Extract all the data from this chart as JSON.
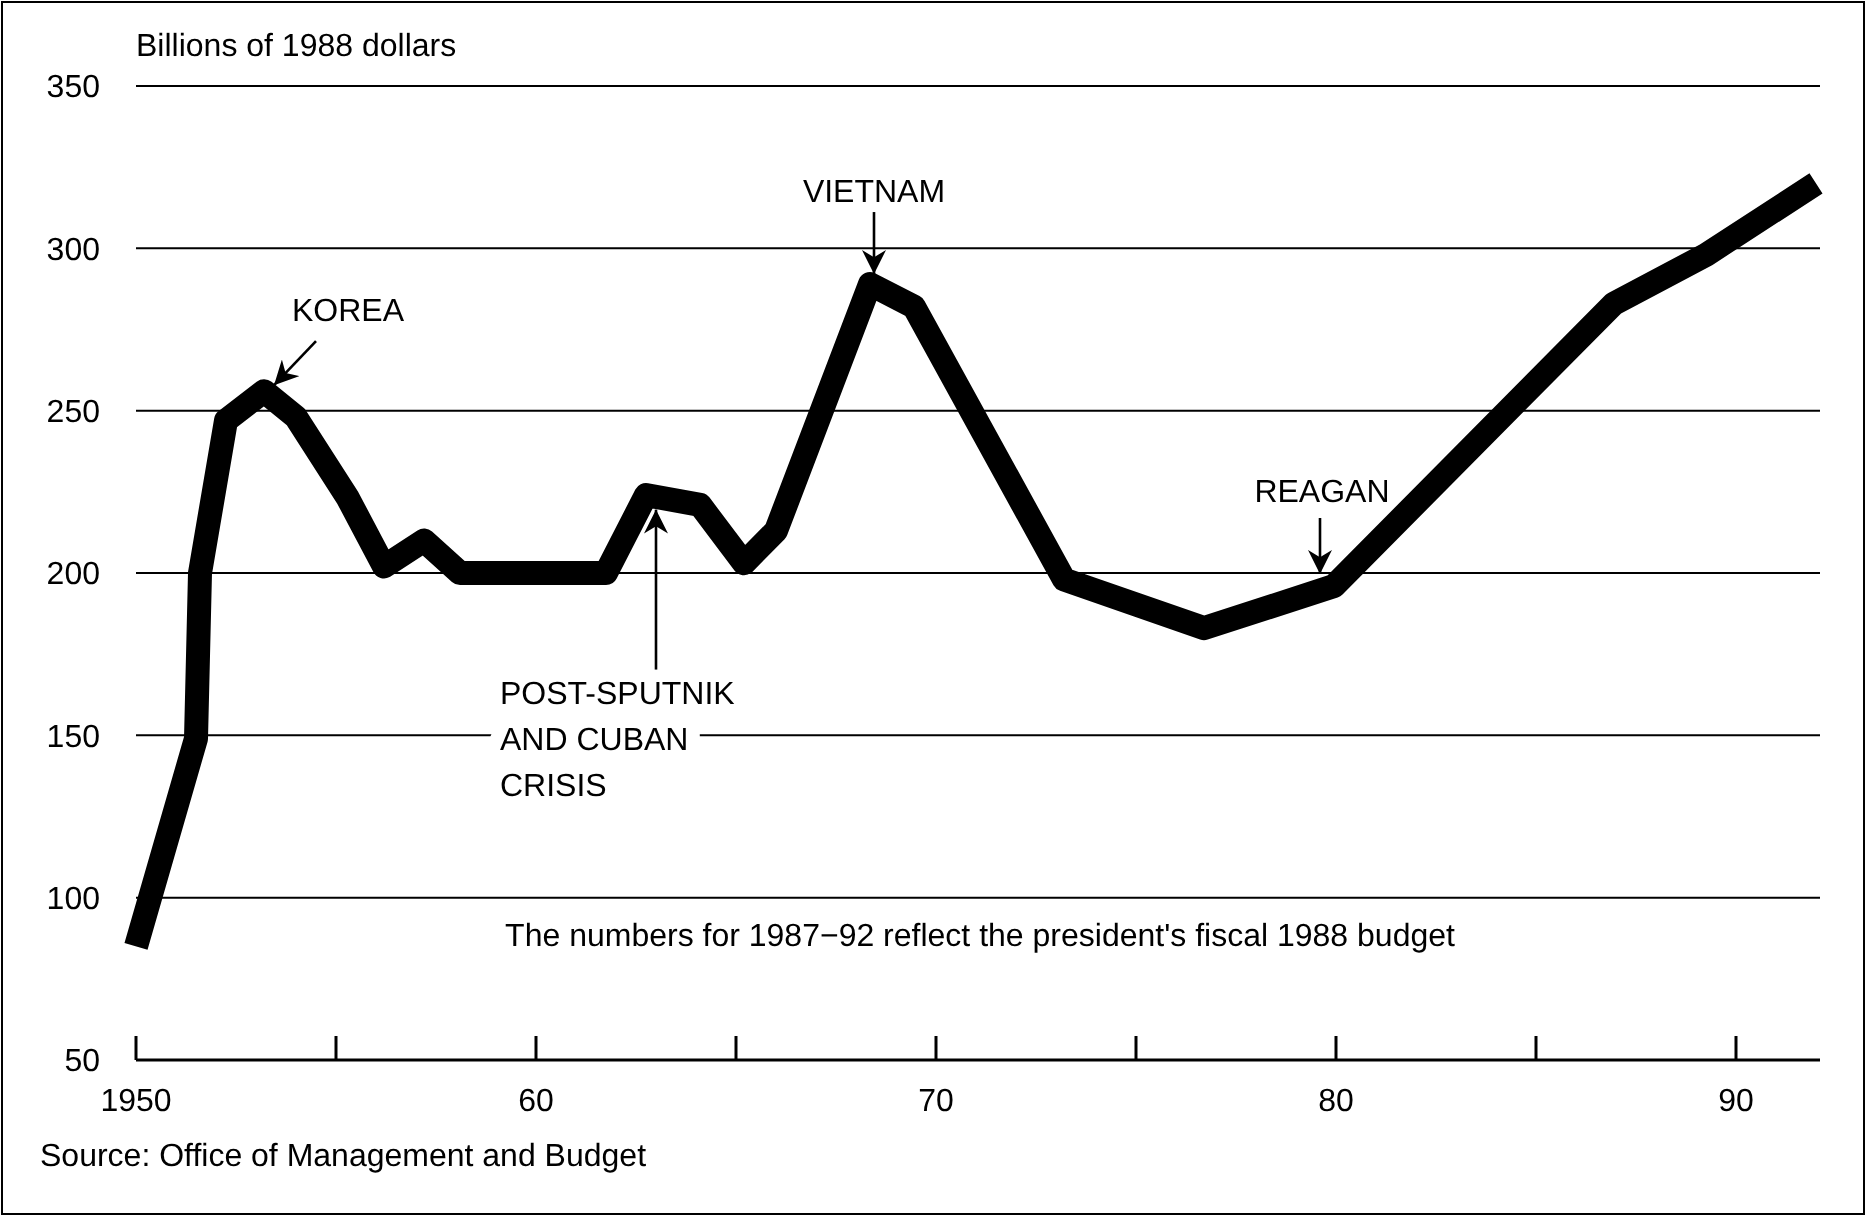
{
  "chart_data": {
    "type": "line",
    "ylabel": "Billions of 1988 dollars",
    "x": [
      1950,
      1951.5,
      1951.6,
      1952.25,
      1953.2,
      1954,
      1955.3,
      1956.2,
      1957.2,
      1958.1,
      1961.75,
      1962.75,
      1964.1,
      1965.2,
      1966,
      1968.35,
      1969.45,
      1973.2,
      1976.7,
      1979.95,
      1986.95,
      1989.25,
      1992
    ],
    "series": [
      {
        "color": "#000000",
        "values": [
          85,
          149,
          200,
          247,
          256,
          248,
          223,
          202,
          210,
          200,
          200,
          224,
          221,
          203,
          213,
          289,
          282,
          198,
          183,
          196,
          283,
          298,
          320
        ]
      }
    ],
    "xlim": [
      1950,
      1992
    ],
    "xticks": [
      {
        "value": 1950,
        "label": "1950"
      },
      {
        "value": 1955,
        "label": null
      },
      {
        "value": 1960,
        "label": "60"
      },
      {
        "value": 1965,
        "label": null
      },
      {
        "value": 1970,
        "label": "70"
      },
      {
        "value": 1975,
        "label": null
      },
      {
        "value": 1980,
        "label": "80"
      },
      {
        "value": 1985,
        "label": null
      },
      {
        "value": 1990,
        "label": "90"
      }
    ],
    "ylim": [
      50,
      350
    ],
    "yticks": [
      50,
      100,
      150,
      200,
      250,
      300,
      350
    ],
    "grid": "y",
    "line_style": "solid",
    "marker": "none",
    "annotations": [
      {
        "text": "KOREA",
        "x": 1953.2,
        "y": 256
      },
      {
        "text": "VIETNAM",
        "x": 1968.35,
        "y": 289
      },
      {
        "text": "REAGAN",
        "x": 1979.95,
        "y": 196
      },
      {
        "text": "POST-SPUTNIK\nAND CUBAN\nCRISIS",
        "x": 1963,
        "y": 222
      },
      "The numbers for 1987−92 reflect the president's fiscal 1988 budget",
      "Source: Office of Management and Budget"
    ]
  }
}
